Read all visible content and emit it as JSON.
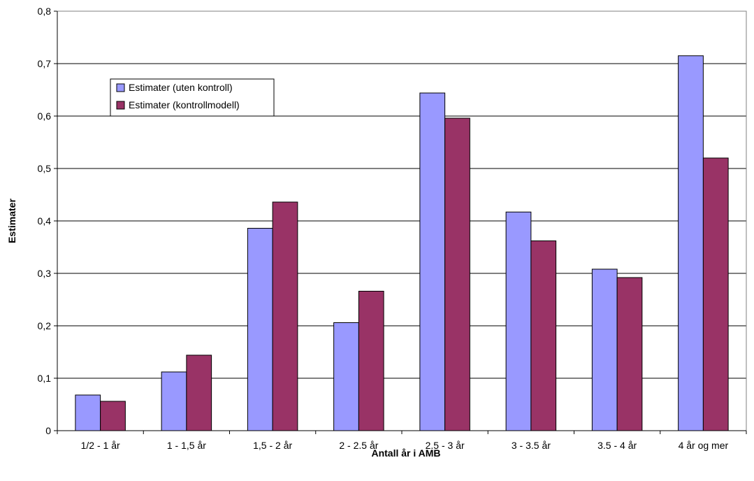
{
  "chart_data": {
    "type": "bar",
    "title": "",
    "xlabel": "Antall år i AMB",
    "ylabel": "Estimater",
    "ylim": [
      0,
      0.8
    ],
    "yticks": [
      "0",
      "0,1",
      "0,2",
      "0,3",
      "0,4",
      "0,5",
      "0,6",
      "0,7",
      "0,8"
    ],
    "grid": true,
    "legend_position": "upper-left",
    "categories": [
      "1/2 - 1 år",
      "1 - 1,5 år",
      "1,5 - 2 år",
      "2 - 2.5 år",
      "2.5 - 3 år",
      "3 - 3.5 år",
      "3.5 - 4 år",
      "4 år og mer"
    ],
    "series": [
      {
        "name": "Estimater (uten kontroll)",
        "color": "#9999ff",
        "values": [
          0.068,
          0.112,
          0.386,
          0.206,
          0.644,
          0.417,
          0.308,
          0.715
        ]
      },
      {
        "name": "Estimater (kontrollmodell)",
        "color": "#993366",
        "values": [
          0.056,
          0.144,
          0.436,
          0.266,
          0.596,
          0.362,
          0.292,
          0.52
        ]
      }
    ]
  }
}
